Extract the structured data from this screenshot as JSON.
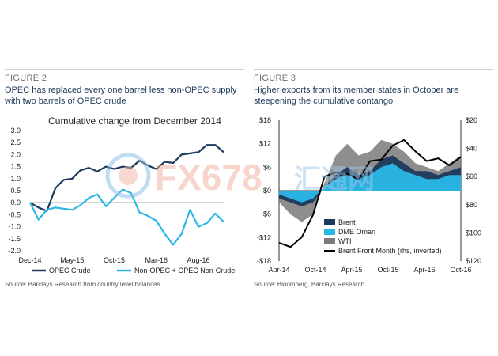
{
  "figure2": {
    "label": "FIGURE 2",
    "title": "OPEC has replaced every one barrel less non-OPEC supply with two barrels of OPEC crude",
    "source": "Source: Barclays Research from country level balances",
    "chart_data": {
      "type": "line",
      "title": "Cumulative change from December 2014",
      "xlabel": "",
      "ylabel": "",
      "x_tick_labels": [
        "Dec-14",
        "May-15",
        "Oct-15",
        "Mar-16",
        "Aug-16"
      ],
      "y_tick_labels": [
        "3.0",
        "2.5",
        "2.0",
        "1.5",
        "1.0",
        "0.5",
        "0.0",
        "-0.5",
        "-1.0",
        "-1.5",
        "-2.0"
      ],
      "ylim": [
        -2.0,
        3.0
      ],
      "grid": false,
      "legend_position": "bottom",
      "x": [
        "Dec-14",
        "Jan-15",
        "Feb-15",
        "Mar-15",
        "Apr-15",
        "May-15",
        "Jun-15",
        "Jul-15",
        "Aug-15",
        "Sep-15",
        "Oct-15",
        "Nov-15",
        "Dec-15",
        "Jan-16",
        "Feb-16",
        "Mar-16",
        "Apr-16",
        "May-16",
        "Jun-16",
        "Jul-16",
        "Aug-16",
        "Sep-16",
        "Oct-16",
        "Nov-16"
      ],
      "series": [
        {
          "name": "OPEC Crude",
          "color": "#1b3a5c",
          "values": [
            0.0,
            -0.2,
            -0.35,
            0.6,
            0.95,
            1.0,
            1.35,
            1.45,
            1.3,
            1.5,
            1.4,
            1.5,
            1.45,
            1.75,
            1.55,
            1.4,
            1.7,
            1.65,
            2.0,
            2.05,
            2.1,
            2.4,
            2.4,
            2.1
          ]
        },
        {
          "name": "Non-OPEC + OPEC Non-Crude",
          "color": "#2ab7e6",
          "values": [
            0.0,
            -0.7,
            -0.3,
            -0.2,
            -0.25,
            -0.3,
            -0.1,
            0.2,
            0.35,
            -0.15,
            0.2,
            0.55,
            0.4,
            -0.4,
            -0.55,
            -0.75,
            -1.3,
            -1.75,
            -1.3,
            -0.3,
            -1.0,
            -0.85,
            -0.45,
            -0.8
          ]
        }
      ]
    }
  },
  "figure3": {
    "label": "FIGURE 3",
    "title": "Higher exports from its member states in October are steepening the cumulative contango",
    "source": "Source: Bloomberg, Barclays Research",
    "chart_data": {
      "type": "area",
      "title": "",
      "xlabel": "",
      "ylabel": "",
      "x_tick_labels": [
        "Apr-14",
        "Oct-14",
        "Apr-15",
        "Oct-15",
        "Apr-16",
        "Oct-16"
      ],
      "y_left_tick_labels": [
        "$18",
        "$12",
        "$6",
        "$0",
        "-$6",
        "-$12",
        "-$18"
      ],
      "y_right_tick_labels": [
        "$20",
        "$40",
        "$60",
        "$80",
        "$100",
        "$120"
      ],
      "ylim_left": [
        -18,
        18
      ],
      "ylim_right_inverted": [
        20,
        120
      ],
      "legend_position": "bottom-right",
      "x": [
        "Apr-14",
        "Jun-14",
        "Aug-14",
        "Oct-14",
        "Dec-14",
        "Feb-15",
        "Apr-15",
        "Jun-15",
        "Aug-15",
        "Oct-15",
        "Dec-15",
        "Feb-16",
        "Apr-16",
        "Jun-16",
        "Aug-16",
        "Oct-16",
        "Nov-16"
      ],
      "series": [
        {
          "name": "Brent",
          "color": "#1b3a5c",
          "values": [
            -2,
            -3,
            -4,
            -3,
            1,
            4,
            6,
            4,
            5,
            8,
            9,
            7,
            5,
            5,
            4,
            5,
            6
          ]
        },
        {
          "name": "DME Oman",
          "color": "#2ab7e6",
          "values": [
            -1,
            -2,
            -3,
            -2,
            1,
            3,
            4,
            3,
            4,
            6,
            7,
            5,
            4,
            3,
            3,
            4,
            4
          ]
        },
        {
          "name": "WTI",
          "color": "#7a7a7a",
          "values": [
            -3,
            -6,
            -8,
            -6,
            2,
            9,
            12,
            9,
            10,
            13,
            12,
            10,
            7,
            6,
            5,
            7,
            9
          ]
        },
        {
          "name": "Brent Front Month (rhs, inverted)",
          "color": "#000000",
          "values": [
            107,
            110,
            103,
            87,
            60,
            57,
            58,
            62,
            49,
            48,
            38,
            34,
            42,
            49,
            47,
            52,
            46
          ]
        }
      ]
    }
  },
  "watermark": {
    "text": "FX678",
    "suffix": "汇通网",
    "color": "#f2b4a3"
  }
}
